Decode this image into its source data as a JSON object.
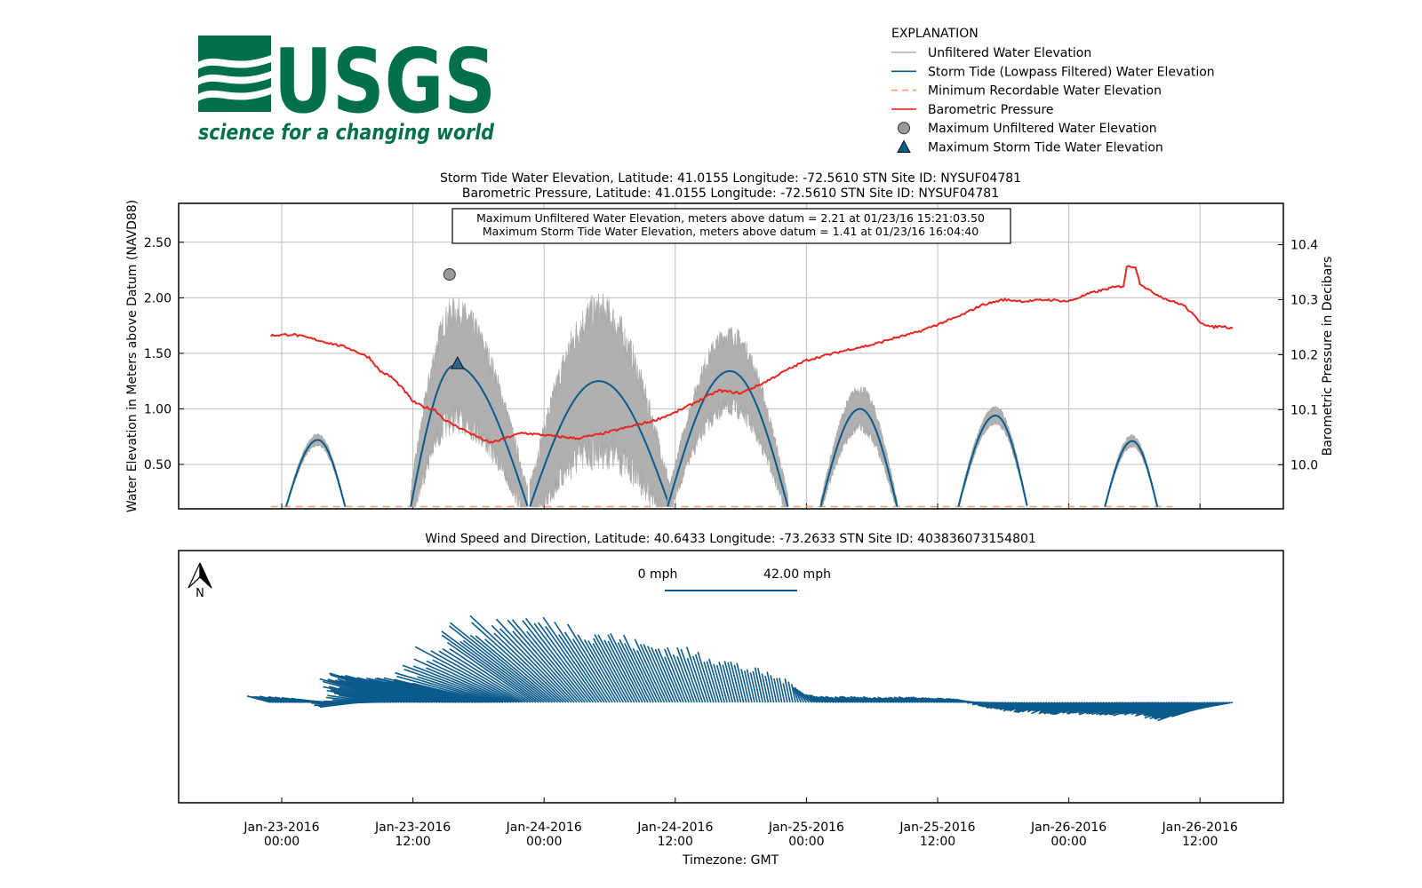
{
  "logo": {
    "text": "USGS",
    "tagline": "science for a changing world",
    "color": "#00704a"
  },
  "legend": {
    "heading": "EXPLANATION",
    "items": [
      {
        "label": "Unfiltered Water Elevation",
        "color": "#b0b0b0",
        "kind": "line"
      },
      {
        "label": "Storm Tide (Lowpass Filtered) Water Elevation",
        "color": "#0b5a8c",
        "kind": "line"
      },
      {
        "label": "Minimum Recordable Water Elevation",
        "color": "#f5a06a",
        "kind": "dash"
      },
      {
        "label": "Barometric Pressure",
        "color": "#e8251f",
        "kind": "line"
      },
      {
        "label": "Maximum Unfiltered Water Elevation",
        "color": "#999999",
        "kind": "circle"
      },
      {
        "label": "Maximum Storm Tide Water Elevation",
        "color": "#0b5a8c",
        "kind": "triangle"
      }
    ]
  },
  "chart_data": [
    {
      "type": "line",
      "title": [
        "Storm Tide Water Elevation, Latitude: 41.0155 Longitude: -72.5610 STN Site ID: NYSUF04781",
        "Barometric Pressure, Latitude: 41.0155 Longitude: -72.5610 STN Site ID: NYSUF04781"
      ],
      "ylabel": "Water Elevation in Meters above Datum (NAVD88)",
      "y2label": "Barometric Pressure in Decibars",
      "ylim": [
        0.1,
        2.85
      ],
      "y2lim": [
        9.92,
        10.475
      ],
      "yticks": [
        "0.50",
        "1.00",
        "1.50",
        "2.00",
        "2.50"
      ],
      "y2ticks": [
        "10.0",
        "10.1",
        "10.2",
        "10.3",
        "10.4"
      ],
      "grid": true,
      "annotation": [
        "Maximum Unfiltered Water Elevation, meters above datum = 2.21 at 01/23/16 15:21:03.50",
        "Maximum Storm Tide Water Elevation, meters above datum = 1.41 at 01/23/16 16:04:40"
      ],
      "min_recordable_elevation": 0.12,
      "max_unfiltered": {
        "hours": 15.35,
        "value": 2.21
      },
      "max_storm_tide": {
        "hours": 16.08,
        "value": 1.41
      },
      "storm_tide_peaks": [
        {
          "start_h": 0.4,
          "peak_h": 3.3,
          "end_h": 5.8,
          "peak": 0.72,
          "noise": 0.06
        },
        {
          "start_h": 11.8,
          "peak_h": 15.8,
          "end_h": 22.5,
          "peak": 1.39,
          "noise": 0.62
        },
        {
          "start_h": 22.7,
          "peak_h": 29.0,
          "end_h": 35.5,
          "peak": 1.25,
          "noise": 0.8
        },
        {
          "start_h": 35.3,
          "peak_h": 41.0,
          "end_h": 46.3,
          "peak": 1.34,
          "noise": 0.42
        },
        {
          "start_h": 49.3,
          "peak_h": 52.9,
          "end_h": 56.3,
          "peak": 1.0,
          "noise": 0.22
        },
        {
          "start_h": 61.9,
          "peak_h": 65.3,
          "end_h": 68.2,
          "peak": 0.94,
          "noise": 0.09
        },
        {
          "start_h": 75.3,
          "peak_h": 77.8,
          "end_h": 80.1,
          "peak": 0.71,
          "noise": 0.06
        }
      ],
      "pressure_decibars": [
        {
          "h": -1.0,
          "v": 10.235
        },
        {
          "h": 1.0,
          "v": 10.237
        },
        {
          "h": 3.0,
          "v": 10.228
        },
        {
          "h": 6.0,
          "v": 10.213
        },
        {
          "h": 8.0,
          "v": 10.195
        },
        {
          "h": 9.0,
          "v": 10.17
        },
        {
          "h": 10.0,
          "v": 10.16
        },
        {
          "h": 11.0,
          "v": 10.14
        },
        {
          "h": 12.0,
          "v": 10.115
        },
        {
          "h": 13.0,
          "v": 10.105
        },
        {
          "h": 14.0,
          "v": 10.1
        },
        {
          "h": 15.0,
          "v": 10.08
        },
        {
          "h": 16.5,
          "v": 10.065
        },
        {
          "h": 18.0,
          "v": 10.05
        },
        {
          "h": 19.0,
          "v": 10.04
        },
        {
          "h": 20.0,
          "v": 10.045
        },
        {
          "h": 21.0,
          "v": 10.052
        },
        {
          "h": 22.0,
          "v": 10.058
        },
        {
          "h": 24.0,
          "v": 10.054
        },
        {
          "h": 27.0,
          "v": 10.048
        },
        {
          "h": 29.0,
          "v": 10.055
        },
        {
          "h": 32.0,
          "v": 10.07
        },
        {
          "h": 34.0,
          "v": 10.08
        },
        {
          "h": 36.0,
          "v": 10.095
        },
        {
          "h": 38.0,
          "v": 10.115
        },
        {
          "h": 40.0,
          "v": 10.135
        },
        {
          "h": 42.0,
          "v": 10.13
        },
        {
          "h": 44.0,
          "v": 10.148
        },
        {
          "h": 46.0,
          "v": 10.17
        },
        {
          "h": 48.0,
          "v": 10.19
        },
        {
          "h": 50.0,
          "v": 10.2
        },
        {
          "h": 52.0,
          "v": 10.21
        },
        {
          "h": 54.0,
          "v": 10.218
        },
        {
          "h": 56.0,
          "v": 10.23
        },
        {
          "h": 58.0,
          "v": 10.24
        },
        {
          "h": 60.0,
          "v": 10.255
        },
        {
          "h": 62.0,
          "v": 10.27
        },
        {
          "h": 64.0,
          "v": 10.29
        },
        {
          "h": 66.0,
          "v": 10.3
        },
        {
          "h": 68.0,
          "v": 10.297
        },
        {
          "h": 70.0,
          "v": 10.3
        },
        {
          "h": 72.0,
          "v": 10.297
        },
        {
          "h": 74.0,
          "v": 10.312
        },
        {
          "h": 76.0,
          "v": 10.322
        },
        {
          "h": 77.0,
          "v": 10.325
        },
        {
          "h": 77.3,
          "v": 10.36
        },
        {
          "h": 78.1,
          "v": 10.36
        },
        {
          "h": 78.5,
          "v": 10.33
        },
        {
          "h": 79.5,
          "v": 10.315
        },
        {
          "h": 81.0,
          "v": 10.3
        },
        {
          "h": 82.5,
          "v": 10.29
        },
        {
          "h": 84.0,
          "v": 10.26
        },
        {
          "h": 85.0,
          "v": 10.25
        },
        {
          "h": 86.0,
          "v": 10.252
        },
        {
          "h": 87.0,
          "v": 10.248
        }
      ]
    },
    {
      "type": "quiver",
      "title": "Wind Speed and Direction, Latitude: 40.6433 Longitude: -73.2633 STN Site ID: 403836073154801",
      "scale_labels": [
        "0 mph",
        "42.00 mph"
      ],
      "scale_mph": 42,
      "north_label": "N",
      "wind_vectors": [
        {
          "h": -1.0,
          "speed": 8,
          "dir_deg": 75
        },
        {
          "h": 1.0,
          "speed": 8,
          "dir_deg": 78
        },
        {
          "h": 3.0,
          "speed": 7,
          "dir_deg": 80
        },
        {
          "h": 5.0,
          "speed": 9,
          "dir_deg": 88
        },
        {
          "h": 7.0,
          "speed": 12,
          "dir_deg": 97
        },
        {
          "h": 9.0,
          "speed": 15,
          "dir_deg": 80
        },
        {
          "h": 11.0,
          "speed": 24,
          "dir_deg": 74
        },
        {
          "h": 13.0,
          "speed": 28,
          "dir_deg": 73
        },
        {
          "h": 15.0,
          "speed": 31,
          "dir_deg": 75
        },
        {
          "h": 17.0,
          "speed": 30,
          "dir_deg": 77
        },
        {
          "h": 19.0,
          "speed": 28,
          "dir_deg": 76
        },
        {
          "h": 21.0,
          "speed": 33,
          "dir_deg": 66
        },
        {
          "h": 23.0,
          "speed": 36,
          "dir_deg": 55
        },
        {
          "h": 25.0,
          "speed": 36,
          "dir_deg": 50
        },
        {
          "h": 27.0,
          "speed": 34,
          "dir_deg": 42
        },
        {
          "h": 29.0,
          "speed": 30,
          "dir_deg": 35
        },
        {
          "h": 31.0,
          "speed": 26,
          "dir_deg": 30
        },
        {
          "h": 33.0,
          "speed": 23,
          "dir_deg": 27
        },
        {
          "h": 35.0,
          "speed": 20,
          "dir_deg": 25
        },
        {
          "h": 37.0,
          "speed": 18,
          "dir_deg": 22
        },
        {
          "h": 39.0,
          "speed": 16,
          "dir_deg": 18
        },
        {
          "h": 41.0,
          "speed": 14,
          "dir_deg": 15
        },
        {
          "h": 43.0,
          "speed": 11,
          "dir_deg": 13
        },
        {
          "h": 45.0,
          "speed": 9,
          "dir_deg": 12
        },
        {
          "h": 47.0,
          "speed": 6,
          "dir_deg": 12
        },
        {
          "h": 49.0,
          "speed": 5,
          "dir_deg": 60
        },
        {
          "h": 51.0,
          "speed": 5,
          "dir_deg": 70
        },
        {
          "h": 53.0,
          "speed": 5,
          "dir_deg": 70
        },
        {
          "h": 55.0,
          "speed": 5,
          "dir_deg": 72
        },
        {
          "h": 57.0,
          "speed": 5,
          "dir_deg": 72
        },
        {
          "h": 59.0,
          "speed": 5,
          "dir_deg": 72
        },
        {
          "h": 61.0,
          "speed": 5,
          "dir_deg": 75
        },
        {
          "h": 63.0,
          "speed": 5,
          "dir_deg": 78
        },
        {
          "h": 65.0,
          "speed": 5,
          "dir_deg": 100
        },
        {
          "h": 67.0,
          "speed": 6,
          "dir_deg": 110
        },
        {
          "h": 69.0,
          "speed": 7,
          "dir_deg": 113
        },
        {
          "h": 71.0,
          "speed": 8,
          "dir_deg": 113
        },
        {
          "h": 73.0,
          "speed": 9,
          "dir_deg": 112
        },
        {
          "h": 75.0,
          "speed": 10,
          "dir_deg": 110
        },
        {
          "h": 77.0,
          "speed": 11,
          "dir_deg": 108
        },
        {
          "h": 79.0,
          "speed": 12,
          "dir_deg": 107
        },
        {
          "h": 81.0,
          "speed": 13,
          "dir_deg": 107
        },
        {
          "h": 83.0,
          "speed": 14,
          "dir_deg": 108
        },
        {
          "h": 85.0,
          "speed": 15,
          "dir_deg": 110
        },
        {
          "h": 87.0,
          "speed": 10,
          "dir_deg": 100
        }
      ]
    }
  ],
  "x_axis": {
    "label": "Timezone: GMT",
    "ticks": [
      {
        "date": "Jan-23-2016",
        "time": "00:00",
        "hours": 0
      },
      {
        "date": "Jan-23-2016",
        "time": "12:00",
        "hours": 12
      },
      {
        "date": "Jan-24-2016",
        "time": "00:00",
        "hours": 24
      },
      {
        "date": "Jan-24-2016",
        "time": "12:00",
        "hours": 36
      },
      {
        "date": "Jan-25-2016",
        "time": "00:00",
        "hours": 48
      },
      {
        "date": "Jan-25-2016",
        "time": "12:00",
        "hours": 60
      },
      {
        "date": "Jan-26-2016",
        "time": "00:00",
        "hours": 72
      },
      {
        "date": "Jan-26-2016",
        "time": "12:00",
        "hours": 84
      }
    ]
  }
}
